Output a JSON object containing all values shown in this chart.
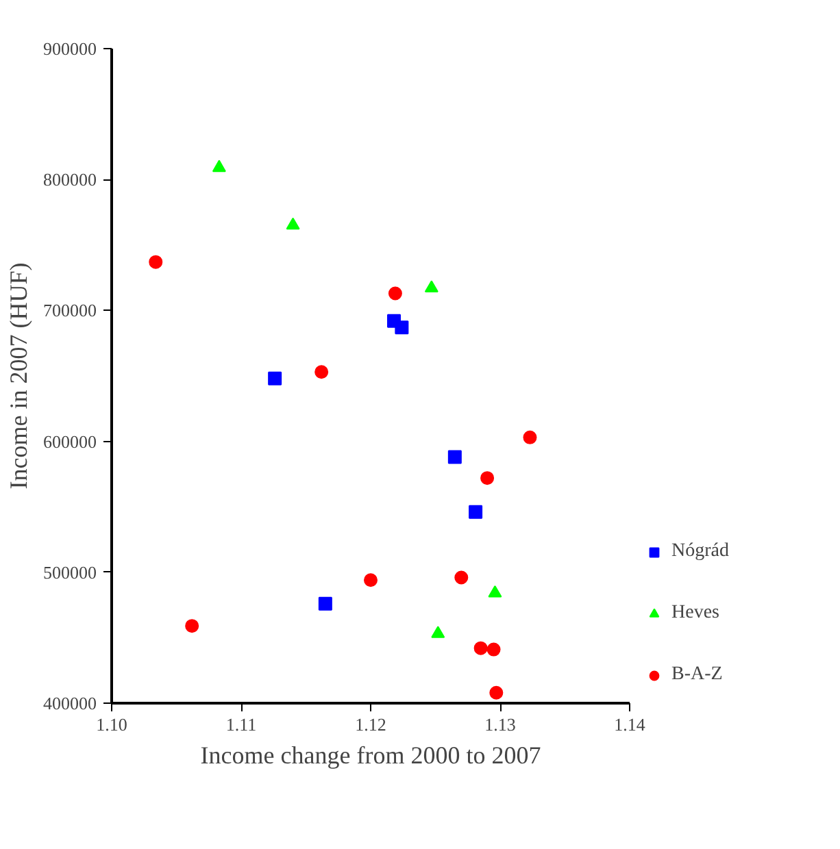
{
  "chart_data": {
    "type": "scatter",
    "xlabel": "Income change from 2000 to 2007",
    "ylabel": "Income in 2007 (HUF)",
    "xlim": [
      1.1,
      1.14
    ],
    "xticks": [
      {
        "value": 1.1,
        "label": "1.10"
      },
      {
        "value": 1.11,
        "label": "1.11"
      },
      {
        "value": 1.12,
        "label": "1.12"
      },
      {
        "value": 1.13,
        "label": "1.13"
      },
      {
        "value": 1.14,
        "label": "1.14"
      }
    ],
    "ylim": [
      400000,
      900000
    ],
    "yticks": [
      400000,
      500000,
      600000,
      700000,
      800000,
      900000
    ],
    "grid": false,
    "legend": "right",
    "series": [
      {
        "name": "Nógrád",
        "color": "#0000ff",
        "marker": "square",
        "x": [
          1.1126,
          1.1218,
          1.1224,
          1.1265,
          1.1281,
          1.1165
        ],
        "values": [
          648000,
          692000,
          687000,
          588000,
          546000,
          476000
        ]
      },
      {
        "name": "Heves",
        "color": "#00ff00",
        "marker": "triangle",
        "x": [
          1.1083,
          1.114,
          1.1247,
          1.1296,
          1.1252
        ],
        "values": [
          809000,
          765000,
          717000,
          484000,
          453000
        ]
      },
      {
        "name": "B-A-Z",
        "color": "#ff0000",
        "marker": "circle",
        "x": [
          1.1034,
          1.1219,
          1.1162,
          1.1323,
          1.129,
          1.12,
          1.127,
          1.1062,
          1.1285,
          1.1295,
          1.1297
        ],
        "values": [
          737000,
          713000,
          653000,
          603000,
          572000,
          494000,
          496000,
          459000,
          442000,
          441000,
          408000
        ]
      }
    ]
  }
}
